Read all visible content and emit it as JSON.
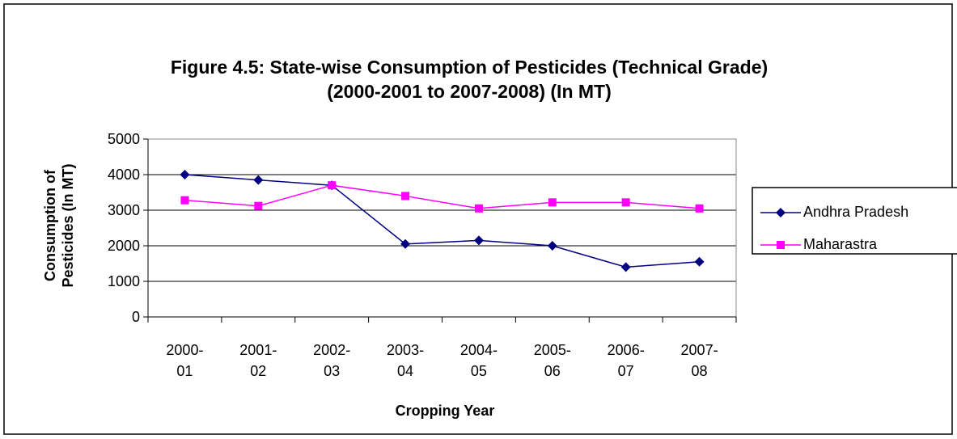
{
  "chart_data": {
    "type": "line",
    "title": "Figure 4.5: State-wise Consumption of Pesticides (Technical Grade)(2000-2001 to 2007-2008)  (In MT)",
    "x_label": "Cropping Year",
    "y_label": "Consumption of Pesticides (In MT)",
    "categories": [
      "2000-01",
      "2001-02",
      "2002-03",
      "2003-04",
      "2004-05",
      "2005-06",
      "2006-07",
      "2007-08"
    ],
    "series": [
      {
        "name": "Andhra Pradesh",
        "color": "#000080",
        "marker": "diamond",
        "values": [
          4000,
          3850,
          3700,
          2050,
          2150,
          2000,
          1400,
          1550
        ]
      },
      {
        "name": "Maharastra",
        "color": "#ff00ff",
        "marker": "square",
        "values": [
          3280,
          3120,
          3700,
          3400,
          3050,
          3220,
          3220,
          3050
        ]
      }
    ],
    "ylim": [
      0,
      5000
    ],
    "yticks": [
      0,
      1000,
      2000,
      3000,
      4000,
      5000
    ],
    "grid": true,
    "legend": "right"
  }
}
